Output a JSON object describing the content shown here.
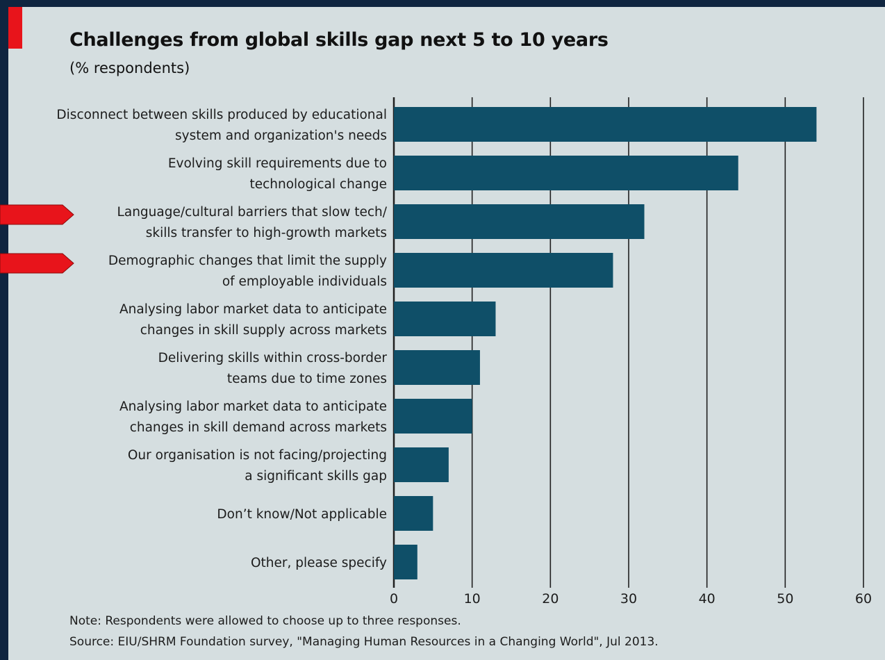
{
  "colors": {
    "bar": "#0f4f68",
    "grid": "#1f1f1f",
    "highlight_arrow": "#e8141b",
    "panel": "#d5dee0",
    "frame": "#0f2540"
  },
  "chart_data": {
    "type": "bar",
    "orientation": "horizontal",
    "title": "Challenges from global skills gap next 5 to 10 years",
    "subtitle": "(% respondents)",
    "categories": [
      [
        "Disconnect between skills produced by educational",
        "system and organization's needs"
      ],
      [
        "Evolving skill requirements due to",
        "technological change"
      ],
      [
        "Language/cultural barriers that slow tech/",
        "skills transfer to high-growth markets"
      ],
      [
        "Demographic changes that limit the supply",
        "of employable individuals"
      ],
      [
        "Analysing labor market data to anticipate",
        "changes in skill supply across markets"
      ],
      [
        "Delivering skills within cross-border",
        "teams due to time zones"
      ],
      [
        "Analysing labor market data to anticipate",
        "changes in skill demand across markets"
      ],
      [
        "Our organisation is not facing/projecting",
        "a significant skills gap"
      ],
      [
        "Don’t know/Not applicable"
      ],
      [
        "Other, please specify"
      ]
    ],
    "values": [
      54,
      44,
      32,
      28,
      13,
      11,
      10,
      7,
      5,
      3
    ],
    "highlighted": [
      2,
      3
    ],
    "xlim": [
      0,
      60
    ],
    "xticks": [
      0,
      10,
      20,
      30,
      40,
      50,
      60
    ],
    "grid": true,
    "legend": "none"
  },
  "footer": {
    "note": "Note: Respondents were allowed to choose up to three responses.",
    "source": "Source: EIU/SHRM Foundation survey, \"Managing Human Resources in a Changing World\", Jul 2013."
  }
}
